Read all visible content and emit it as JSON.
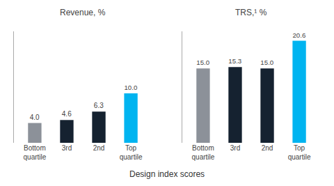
{
  "chart_data": [
    {
      "type": "bar",
      "title": "Revenue, %",
      "xlabel": "Design index scores",
      "categories": [
        "Bottom\nquartile",
        "3rd",
        "2nd",
        "Top\nquartile"
      ],
      "values": [
        4.0,
        4.6,
        6.3,
        10.0
      ],
      "value_labels": [
        "4.0",
        "4.6",
        "6.3",
        "10.0"
      ],
      "colors": [
        "#8c9199",
        "#152230",
        "#152230",
        "#00b4f0"
      ],
      "ylim": [
        0,
        22.5
      ],
      "yticks": [],
      "data_labels": true,
      "tick_labels": "x",
      "grid": false
    },
    {
      "type": "bar",
      "title": "TRS,¹ %",
      "categories": [
        "Bottom\nquartile",
        "3rd",
        "2nd",
        "Top\nquartile"
      ],
      "values": [
        15.0,
        15.3,
        15.0,
        20.6
      ],
      "value_labels": [
        "15.0",
        "15.3",
        "15.0",
        "20.6"
      ],
      "colors": [
        "#8c9199",
        "#152230",
        "#152230",
        "#00b4f0"
      ],
      "ylim": [
        0,
        22.5
      ],
      "yticks": [],
      "data_labels": true,
      "tick_labels": "x",
      "grid": false
    }
  ]
}
